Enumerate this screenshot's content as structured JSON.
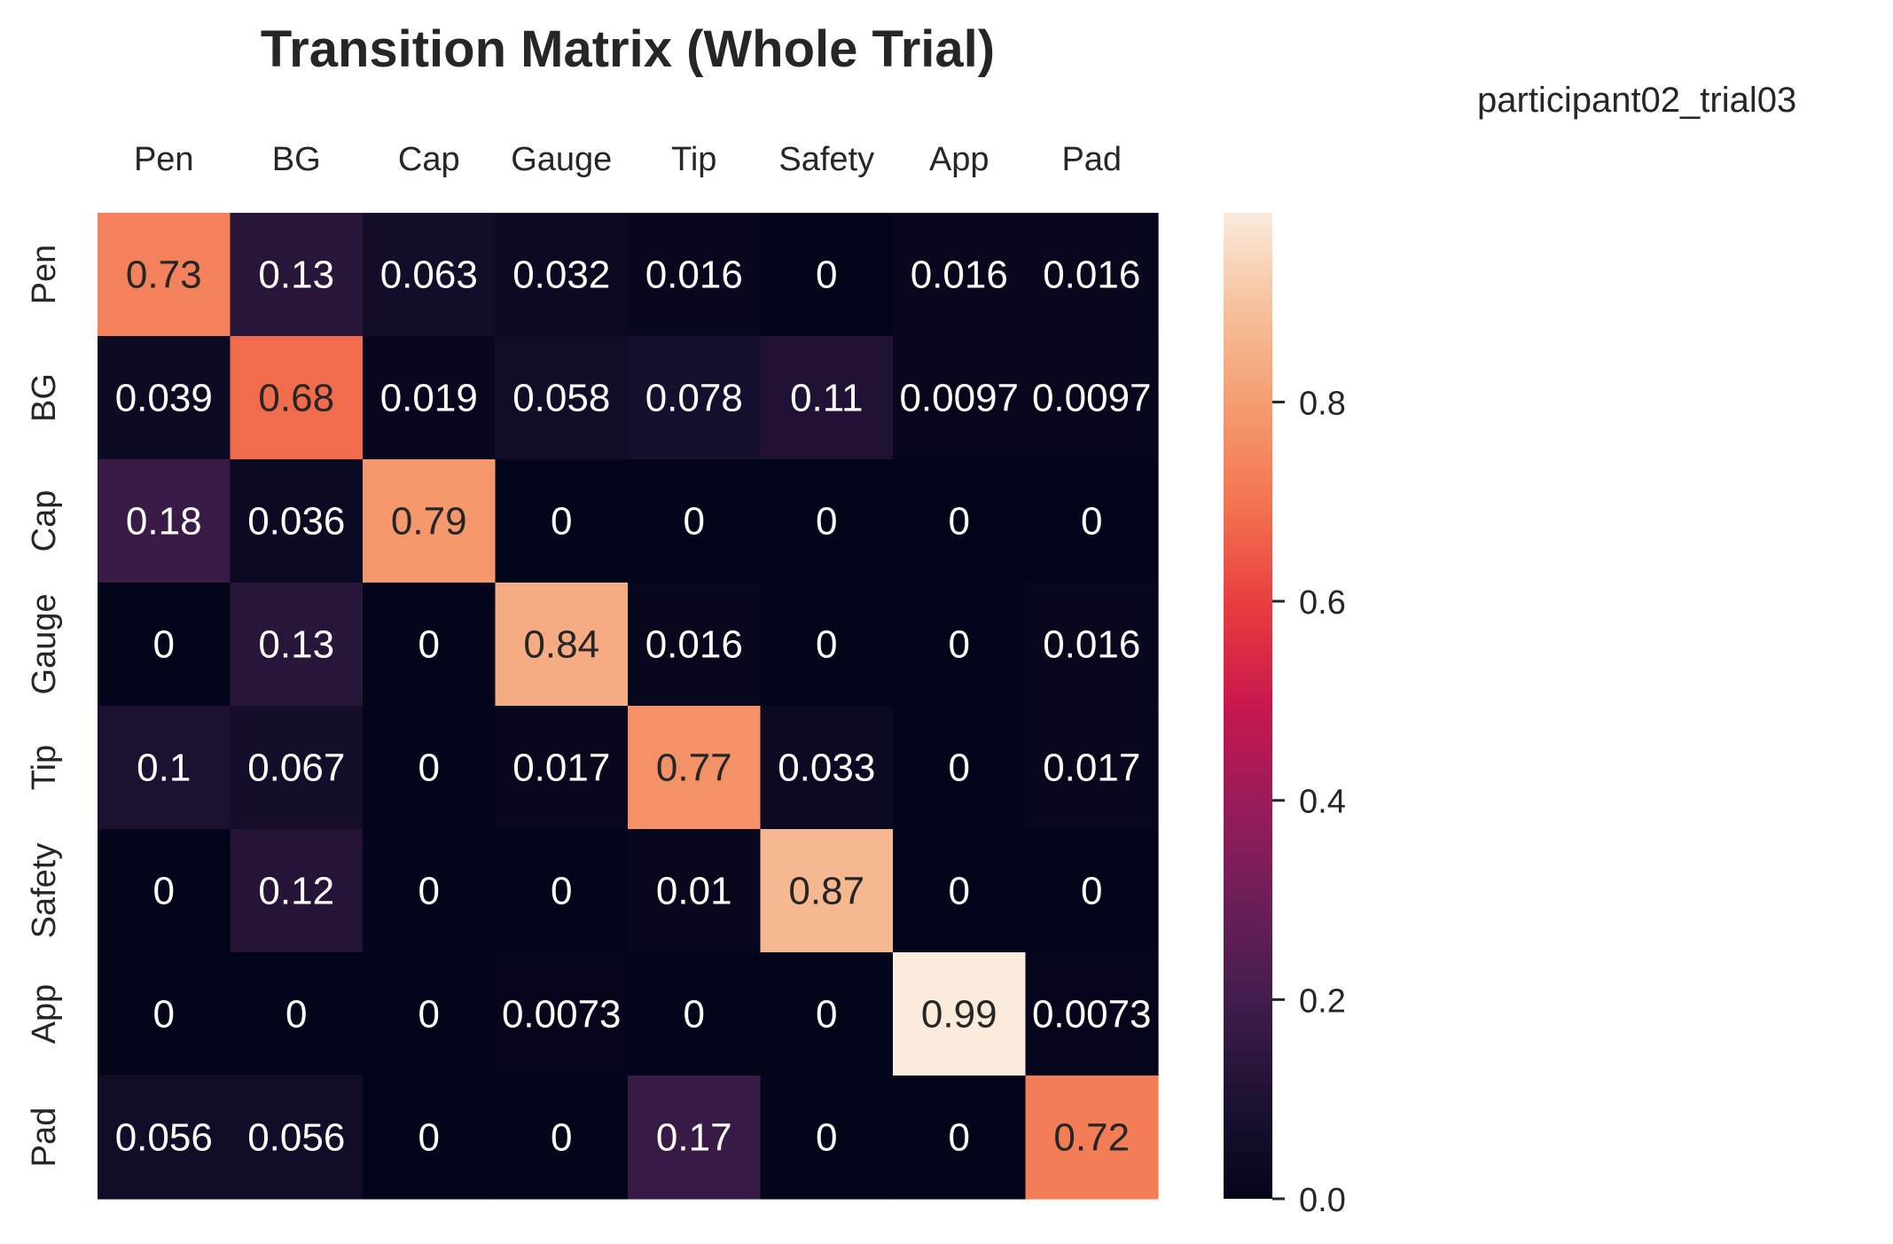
{
  "chart_data": {
    "type": "heatmap",
    "title": "Transition Matrix (Whole Trial)",
    "annotation": "participant02_trial03",
    "x_categories": [
      "Pen",
      "BG",
      "Cap",
      "Gauge",
      "Tip",
      "Safety",
      "App",
      "Pad"
    ],
    "y_categories": [
      "Pen",
      "BG",
      "Cap",
      "Gauge",
      "Tip",
      "Safety",
      "App",
      "Pad"
    ],
    "x_axis_position": "top",
    "cell_labels": [
      [
        "0.73",
        "0.13",
        "0.063",
        "0.032",
        "0.016",
        "0",
        "0.016",
        "0.016"
      ],
      [
        "0.039",
        "0.68",
        "0.019",
        "0.058",
        "0.078",
        "0.11",
        "0.0097",
        "0.0097"
      ],
      [
        "0.18",
        "0.036",
        "0.79",
        "0",
        "0",
        "0",
        "0",
        "0"
      ],
      [
        "0",
        "0.13",
        "0",
        "0.84",
        "0.016",
        "0",
        "0",
        "0.016"
      ],
      [
        "0.1",
        "0.067",
        "0",
        "0.017",
        "0.77",
        "0.033",
        "0",
        "0.017"
      ],
      [
        "0",
        "0.12",
        "0",
        "0",
        "0.01",
        "0.87",
        "0",
        "0"
      ],
      [
        "0",
        "0",
        "0",
        "0.0073",
        "0",
        "0",
        "0.99",
        "0.0073"
      ],
      [
        "0.056",
        "0.056",
        "0",
        "0",
        "0.17",
        "0",
        "0",
        "0.72"
      ]
    ],
    "colorbar": {
      "colormap": "rocket",
      "vmin": 0.0,
      "vmax": 0.99,
      "ticks": [
        "0.0",
        "0.2",
        "0.4",
        "0.6",
        "0.8"
      ]
    },
    "grid": false
  }
}
